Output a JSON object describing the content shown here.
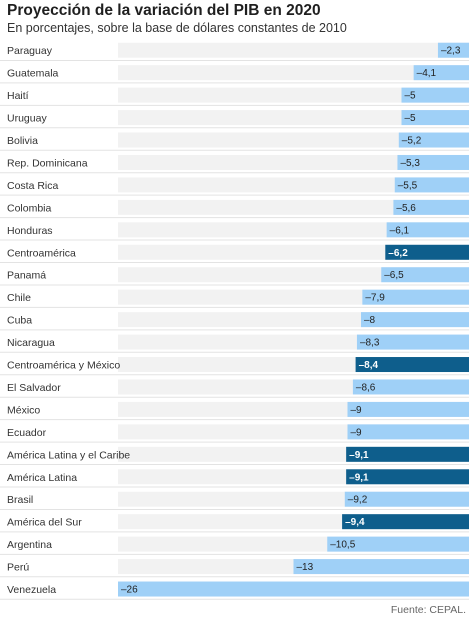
{
  "header": {
    "title": "Proyección de la variación del PIB en 2020",
    "subtitle": "En porcentajes, sobre la base de dólares constantes de 2010"
  },
  "footer": {
    "source": "Fuente: CEPAL."
  },
  "colors": {
    "bar": "#9fd0f7",
    "bar_highlight": "#0e5e8c",
    "track": "#f2f2f2",
    "separator": "#e3e3e3"
  },
  "chart_data": {
    "type": "bar",
    "orientation": "horizontal",
    "title": "Proyección de la variación del PIB en 2020",
    "subtitle": "En porcentajes, sobre la base de dólares constantes de 2010",
    "xlim": [
      -26,
      0
    ],
    "categories": [
      "Paraguay",
      "Guatemala",
      "Haití",
      "Uruguay",
      "Bolivia",
      "Rep. Dominicana",
      "Costa Rica",
      "Colombia",
      "Honduras",
      "Centroamérica",
      "Panamá",
      "Chile",
      "Cuba",
      "Nicaragua",
      "Centroamérica y México",
      "El Salvador",
      "México",
      "Ecuador",
      "América Latina y el Caribe",
      "América Latina",
      "Brasil",
      "América del Sur",
      "Argentina",
      "Perú",
      "Venezuela"
    ],
    "values": [
      -2.3,
      -4.1,
      -5,
      -5,
      -5.2,
      -5.3,
      -5.5,
      -5.6,
      -6.1,
      -6.2,
      -6.5,
      -7.9,
      -8,
      -8.3,
      -8.4,
      -8.6,
      -9,
      -9,
      -9.1,
      -9.1,
      -9.2,
      -9.4,
      -10.5,
      -13,
      -26
    ],
    "value_labels": [
      "–2,3",
      "–4,1",
      "–5",
      "–5",
      "–5,2",
      "–5,3",
      "–5,5",
      "–5,6",
      "–6,1",
      "–6,2",
      "–6,5",
      "–7,9",
      "–8",
      "–8,3",
      "–8,4",
      "–8,6",
      "–9",
      "–9",
      "–9,1",
      "–9,1",
      "–9,2",
      "–9,4",
      "–10,5",
      "–13",
      "–26"
    ],
    "highlighted": [
      "Centroamérica",
      "Centroamérica y México",
      "América Latina y el Caribe",
      "América Latina",
      "América del Sur"
    ],
    "grid": false,
    "legend": "none"
  }
}
